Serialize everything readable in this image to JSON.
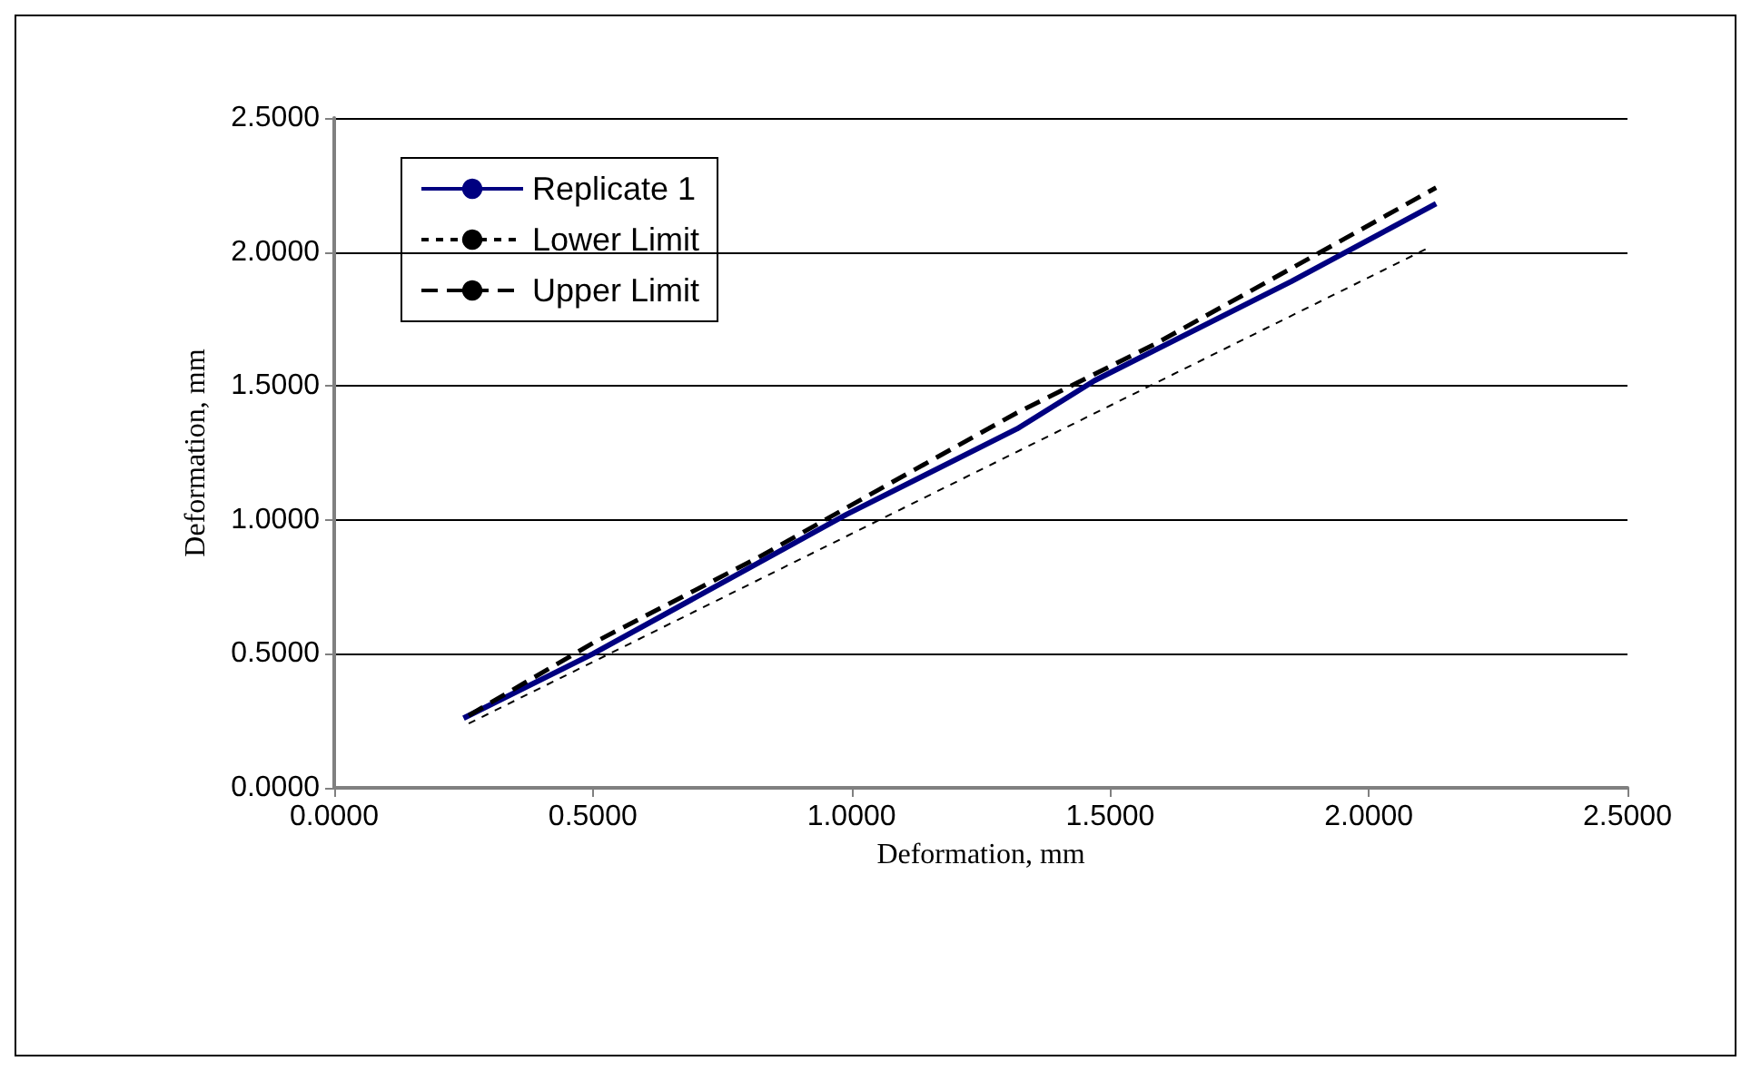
{
  "chart_data": {
    "type": "line",
    "xlabel": "Deformation, mm",
    "ylabel": "Deformation, mm",
    "xlim": [
      0,
      2.5
    ],
    "xticks": [
      {
        "value": 0,
        "label": "0.0000"
      },
      {
        "value": 0.5,
        "label": "0.5000"
      },
      {
        "value": 1,
        "label": "1.0000"
      },
      {
        "value": 1.5,
        "label": "1.5000"
      },
      {
        "value": 2,
        "label": "2.0000"
      },
      {
        "value": 2.5,
        "label": "2.5000"
      }
    ],
    "ylim": [
      0,
      2.5
    ],
    "yticks": [
      {
        "value": 0,
        "label": "0.0000"
      },
      {
        "value": 0.5,
        "label": "0.5000"
      },
      {
        "value": 1,
        "label": "1.0000"
      },
      {
        "value": 1.5,
        "label": "1.5000"
      },
      {
        "value": 2,
        "label": "2.0000"
      },
      {
        "value": 2.5,
        "label": "2.5000"
      }
    ],
    "grid": "y",
    "legend": "top left",
    "marker": "none",
    "series": [
      {
        "name": "Replicate 1",
        "color": "#000080",
        "line_style": "solid",
        "x": [
          0.25,
          0.5,
          0.99,
          1.32,
          1.47,
          1.85,
          2.13
        ],
        "values": [
          0.26,
          0.5,
          1.02,
          1.34,
          1.52,
          1.89,
          2.18
        ]
      },
      {
        "name": "Lower Limit",
        "color": "#000000",
        "line_style": "dotted",
        "x": [
          0.26,
          2.12
        ],
        "values": [
          0.24,
          2.02
        ]
      },
      {
        "name": "Upper Limit",
        "color": "#000000",
        "line_style": "dashed",
        "x": [
          0.26,
          0.5,
          0.82,
          1.05,
          1.32,
          1.59,
          1.87,
          2.13
        ],
        "values": [
          0.27,
          0.54,
          0.86,
          1.11,
          1.4,
          1.66,
          1.96,
          2.24
        ]
      }
    ]
  }
}
